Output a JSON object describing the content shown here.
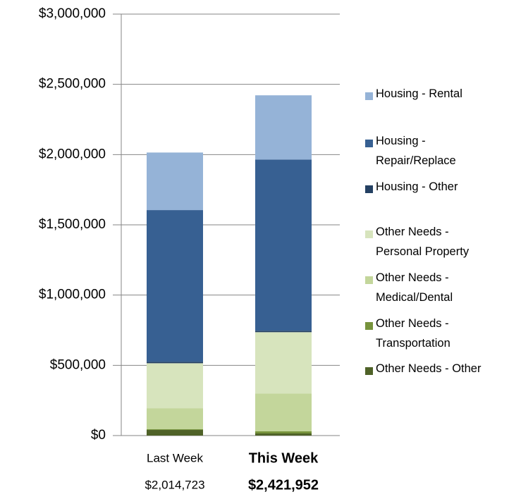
{
  "chart_data": {
    "type": "stacked_bar",
    "categories": [
      "Last Week",
      "This Week"
    ],
    "totals": [
      2014723,
      2421952
    ],
    "total_labels": [
      "$2,014,723",
      "$2,421,952"
    ],
    "series": [
      {
        "name": "Other Needs - Other",
        "color": "#4f6228",
        "values": [
          40000,
          15000
        ]
      },
      {
        "name": "Other Needs - Transportation",
        "color": "#77933c",
        "values": [
          5000,
          15000
        ]
      },
      {
        "name": "Other Needs - Medical/Dental",
        "color": "#c3d69b",
        "values": [
          150000,
          270000
        ]
      },
      {
        "name": "Other Needs - Personal Property",
        "color": "#d7e4bd",
        "values": [
          320000,
          436000
        ]
      },
      {
        "name": "Housing - Other",
        "color": "#244062",
        "values": [
          10000,
          10000
        ]
      },
      {
        "name": "Housing - Repair/Replace",
        "color": "#376092",
        "values": [
          1080000,
          1219000
        ]
      },
      {
        "name": "Housing - Rental",
        "color": "#95b3d7",
        "values": [
          409723,
          456952
        ]
      }
    ],
    "ylim": [
      0,
      3000000
    ],
    "yticks": [
      {
        "value": 0,
        "label": "$0"
      },
      {
        "value": 500000,
        "label": "$500,000"
      },
      {
        "value": 1000000,
        "label": "$1,000,000"
      },
      {
        "value": 1500000,
        "label": "$1,500,000"
      },
      {
        "value": 2000000,
        "label": "$2,000,000"
      },
      {
        "value": 2500000,
        "label": "$2,500,000"
      },
      {
        "value": 3000000,
        "label": "$3,000,000"
      }
    ],
    "grid": true
  }
}
